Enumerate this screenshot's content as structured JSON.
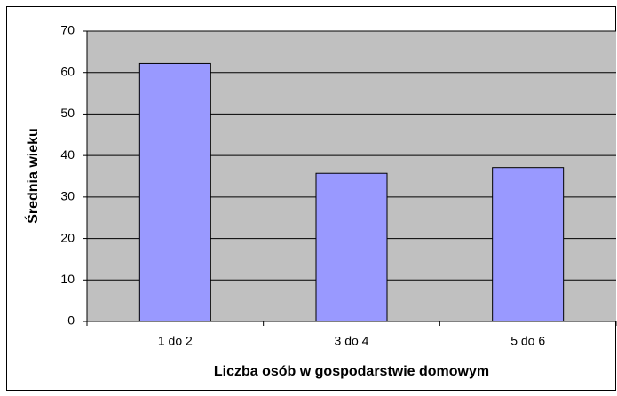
{
  "chart_data": {
    "type": "bar",
    "categories": [
      "1 do 2",
      "3 do 4",
      "5 do 6"
    ],
    "values": [
      62.2,
      35.7,
      37.1
    ],
    "color": "#9999ff",
    "xlabel": "Liczba osób w gospodarstwie domowym",
    "ylabel": "Średnia wieku",
    "ylim": [
      0,
      70
    ],
    "yticks": [
      0,
      10,
      20,
      30,
      40,
      50,
      60,
      70
    ],
    "grid": true
  }
}
